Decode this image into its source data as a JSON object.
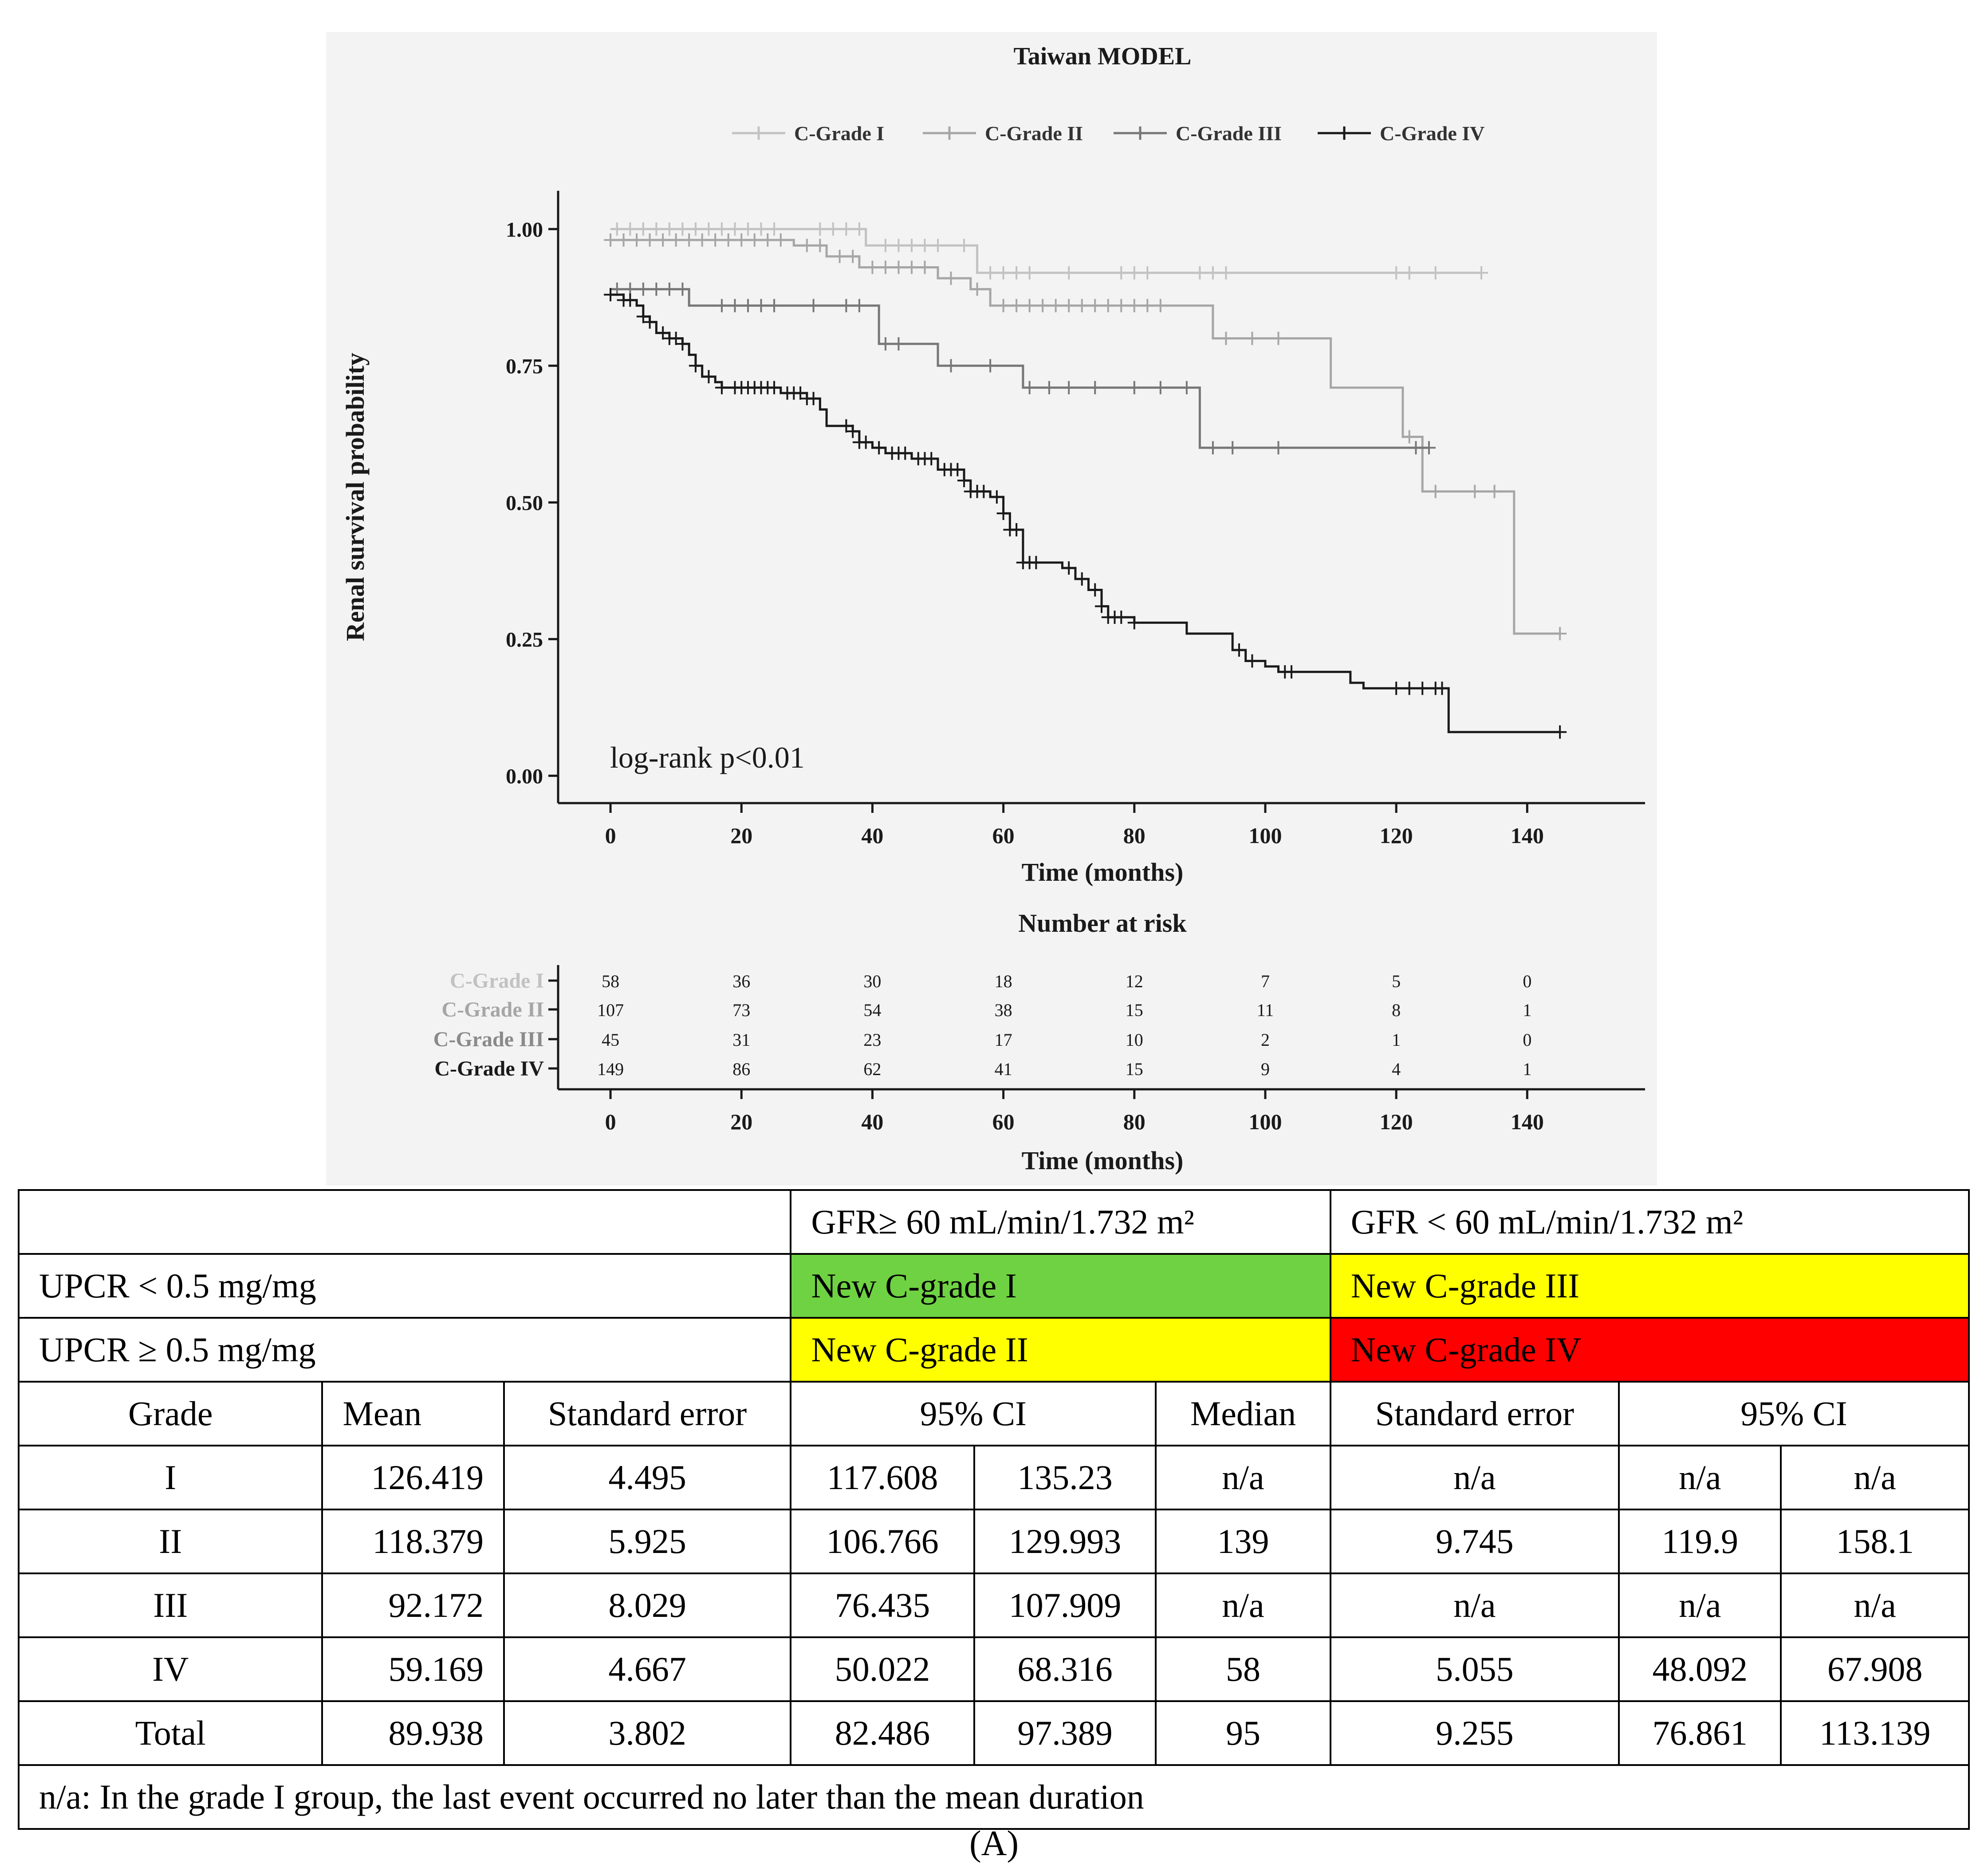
{
  "chart_data": {
    "type": "line",
    "title": "Taiwan MODEL",
    "xlabel": "Time (months)",
    "ylabel": "Renal survival probability",
    "xlim": [
      -8,
      158
    ],
    "ylim": [
      -0.05,
      1.07
    ],
    "x_ticks": [
      0,
      20,
      40,
      60,
      80,
      100,
      120,
      140
    ],
    "y_ticks": [
      0,
      0.25,
      0.5,
      0.75,
      1.0
    ],
    "y_tick_labels": [
      "0.00",
      "0.25",
      "0.50",
      "0.75",
      "1.00"
    ],
    "grid": false,
    "legend_position": "top",
    "annotation": "log-rank p<0.01",
    "series": [
      {
        "name": "C-Grade I",
        "color": "#c2c2c2",
        "steps": [
          [
            0,
            1.0
          ],
          [
            39,
            0.97
          ],
          [
            56,
            0.92
          ],
          [
            133,
            0.92
          ]
        ],
        "censor_x": [
          1,
          3,
          5,
          7,
          9,
          11,
          13,
          15,
          17,
          19,
          21,
          23,
          25,
          32,
          34,
          36,
          38,
          42,
          44,
          46,
          48,
          50,
          54,
          58,
          60,
          62,
          64,
          70,
          78,
          80,
          82,
          90,
          92,
          94,
          120,
          122,
          126,
          133
        ]
      },
      {
        "name": "C-Grade II",
        "color": "#a6a6a6",
        "steps": [
          [
            0,
            0.98
          ],
          [
            28,
            0.97
          ],
          [
            33,
            0.95
          ],
          [
            38,
            0.93
          ],
          [
            50,
            0.91
          ],
          [
            55,
            0.89
          ],
          [
            58,
            0.86
          ],
          [
            92,
            0.8
          ],
          [
            110,
            0.71
          ],
          [
            121,
            0.62
          ],
          [
            124,
            0.52
          ],
          [
            138,
            0.26
          ],
          [
            145,
            0.26
          ]
        ],
        "censor_x": [
          0,
          2,
          4,
          6,
          8,
          10,
          12,
          14,
          16,
          18,
          20,
          22,
          24,
          26,
          30,
          32,
          35,
          37,
          40,
          42,
          44,
          46,
          48,
          52,
          56,
          60,
          62,
          64,
          66,
          68,
          70,
          72,
          74,
          76,
          78,
          80,
          82,
          84,
          94,
          98,
          102,
          122,
          126,
          132,
          135,
          145
        ]
      },
      {
        "name": "C-Grade III",
        "color": "#777777",
        "steps": [
          [
            0,
            0.89
          ],
          [
            12,
            0.86
          ],
          [
            41,
            0.79
          ],
          [
            50,
            0.75
          ],
          [
            63,
            0.71
          ],
          [
            90,
            0.6
          ],
          [
            125,
            0.6
          ]
        ],
        "censor_x": [
          1,
          3,
          5,
          7,
          9,
          11,
          17,
          19,
          21,
          23,
          25,
          31,
          36,
          38,
          42,
          44,
          52,
          58,
          64,
          67,
          70,
          74,
          80,
          84,
          88,
          92,
          95,
          102,
          123,
          125
        ]
      },
      {
        "name": "C-Grade IV",
        "color": "#1a1a1a",
        "steps": [
          [
            0,
            0.88
          ],
          [
            2,
            0.87
          ],
          [
            4,
            0.86
          ],
          [
            5,
            0.84
          ],
          [
            6,
            0.83
          ],
          [
            7,
            0.81
          ],
          [
            9,
            0.8
          ],
          [
            11,
            0.79
          ],
          [
            12,
            0.77
          ],
          [
            13,
            0.75
          ],
          [
            14,
            0.73
          ],
          [
            16,
            0.72
          ],
          [
            17,
            0.71
          ],
          [
            26,
            0.7
          ],
          [
            30,
            0.69
          ],
          [
            32,
            0.67
          ],
          [
            33,
            0.64
          ],
          [
            37,
            0.63
          ],
          [
            38,
            0.61
          ],
          [
            40,
            0.6
          ],
          [
            42,
            0.59
          ],
          [
            46,
            0.58
          ],
          [
            50,
            0.56
          ],
          [
            54,
            0.54
          ],
          [
            55,
            0.52
          ],
          [
            58,
            0.51
          ],
          [
            60,
            0.48
          ],
          [
            61,
            0.45
          ],
          [
            63,
            0.39
          ],
          [
            69,
            0.38
          ],
          [
            71,
            0.36
          ],
          [
            73,
            0.34
          ],
          [
            75,
            0.31
          ],
          [
            76,
            0.29
          ],
          [
            80,
            0.28
          ],
          [
            88,
            0.26
          ],
          [
            95,
            0.23
          ],
          [
            97,
            0.21
          ],
          [
            100,
            0.2
          ],
          [
            102,
            0.19
          ],
          [
            113,
            0.17
          ],
          [
            115,
            0.16
          ],
          [
            128,
            0.08
          ],
          [
            145,
            0.08
          ]
        ],
        "censor_x": [
          0,
          2,
          3,
          5,
          6,
          8,
          9,
          10,
          11,
          13,
          15,
          17,
          19,
          20,
          21,
          22,
          23,
          24,
          25,
          27,
          28,
          29,
          30,
          31,
          36,
          37,
          38,
          39,
          41,
          43,
          44,
          45,
          47,
          48,
          49,
          51,
          52,
          53,
          54,
          55,
          56,
          57,
          59,
          60,
          61,
          62,
          63,
          64,
          65,
          70,
          72,
          74,
          75,
          76,
          77,
          78,
          80,
          96,
          98,
          103,
          104,
          120,
          122,
          124,
          126,
          127,
          145
        ]
      }
    ],
    "risk_table": {
      "title": "Number at risk",
      "xlabel": "Time (months)",
      "rows": [
        {
          "label": "C-Grade I",
          "color": "#c2c2c2",
          "values": [
            58,
            36,
            30,
            18,
            12,
            7,
            5,
            0
          ]
        },
        {
          "label": "C-Grade II",
          "color": "#a6a6a6",
          "values": [
            107,
            73,
            54,
            38,
            15,
            11,
            8,
            1
          ]
        },
        {
          "label": "C-Grade III",
          "color": "#8a8a8a",
          "values": [
            45,
            31,
            23,
            17,
            10,
            2,
            1,
            0
          ]
        },
        {
          "label": "C-Grade IV",
          "color": "#1a1a1a",
          "values": [
            149,
            86,
            62,
            41,
            15,
            9,
            4,
            1
          ]
        }
      ]
    }
  },
  "classification": {
    "col_headers": [
      "GFR≥ 60 mL/min/1.732 m²",
      "GFR < 60 mL/min/1.732 m²"
    ],
    "rows": [
      {
        "label": "UPCR < 0.5 mg/mg",
        "cells": [
          "New C-grade I",
          "New C-grade III"
        ],
        "colors": [
          "#6fd242",
          "#ffff00"
        ]
      },
      {
        "label": "UPCR ≥ 0.5 mg/mg",
        "cells": [
          "New C-grade II",
          "New C-grade IV"
        ],
        "colors": [
          "#ffff00",
          "#ff0000"
        ]
      }
    ]
  },
  "stats_table": {
    "headers": [
      "Grade",
      "Mean",
      "Standard error",
      "95% CI",
      "Median",
      "Standard error",
      "95% CI"
    ],
    "rows": [
      [
        "I",
        "126.419",
        "4.495",
        "117.608",
        "135.23",
        "n/a",
        "n/a",
        "n/a",
        "n/a"
      ],
      [
        "II",
        "118.379",
        "5.925",
        "106.766",
        "129.993",
        "139",
        "9.745",
        "119.9",
        "158.1"
      ],
      [
        "III",
        "92.172",
        "8.029",
        "76.435",
        "107.909",
        "n/a",
        "n/a",
        "n/a",
        "n/a"
      ],
      [
        "IV",
        "59.169",
        "4.667",
        "50.022",
        "68.316",
        "58",
        "5.055",
        "48.092",
        "67.908"
      ],
      [
        "Total",
        "89.938",
        "3.802",
        "82.486",
        "97.389",
        "95",
        "9.255",
        "76.861",
        "113.139"
      ]
    ],
    "footnote": "n/a: In the grade I group, the last event occurred no later than the mean duration"
  },
  "caption": "(A)"
}
